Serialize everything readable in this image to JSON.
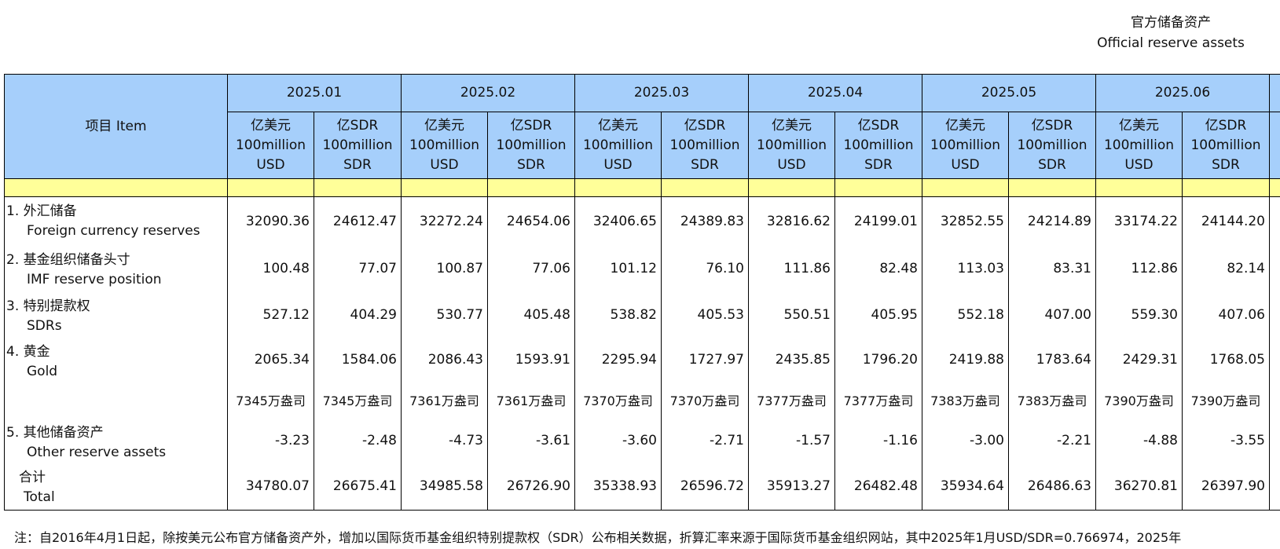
{
  "header": {
    "title_cn": "官方储备资产",
    "title_en": "Official reserve assets"
  },
  "table": {
    "item_header": "项目  Item",
    "months": [
      "2025.01",
      "2025.02",
      "2025.03",
      "2025.04",
      "2025.05",
      "2025.06"
    ],
    "unit_usd": [
      "亿美元",
      "100million",
      "USD"
    ],
    "unit_sdr": [
      "亿SDR",
      "100million",
      "SDR"
    ],
    "rows": [
      {
        "label_cn": "1. 外汇储备",
        "label_en": "Foreign currency reserves",
        "values": [
          "32090.36",
          "24612.47",
          "32272.24",
          "24654.06",
          "32406.65",
          "24389.83",
          "32816.62",
          "24199.01",
          "32852.55",
          "24214.89",
          "33174.22",
          "24144.20"
        ]
      },
      {
        "label_cn": "2. 基金组织储备头寸",
        "label_en": "IMF reserve position",
        "values": [
          "100.48",
          "77.07",
          "100.87",
          "77.06",
          "101.12",
          "76.10",
          "111.86",
          "82.48",
          "113.03",
          "83.31",
          "112.86",
          "82.14"
        ]
      },
      {
        "label_cn": "3. 特别提款权",
        "label_en": "SDRs",
        "values": [
          "527.12",
          "404.29",
          "530.77",
          "405.48",
          "538.82",
          "405.53",
          "550.51",
          "405.95",
          "552.18",
          "407.00",
          "559.30",
          "407.06"
        ]
      },
      {
        "label_cn": "4. 黄金",
        "label_en": "Gold",
        "values": [
          "2065.34",
          "1584.06",
          "2086.43",
          "1593.91",
          "2295.94",
          "1727.97",
          "2435.85",
          "1796.20",
          "2419.88",
          "1783.64",
          "2429.31",
          "1768.05"
        ]
      },
      {
        "values": [
          "7345万盎司",
          "7345万盎司",
          "7361万盎司",
          "7361万盎司",
          "7370万盎司",
          "7370万盎司",
          "7377万盎司",
          "7377万盎司",
          "7383万盎司",
          "7383万盎司",
          "7390万盎司",
          "7390万盎司"
        ]
      },
      {
        "label_cn": "5. 其他储备资产",
        "label_en": "Other reserve assets",
        "values": [
          "-3.23",
          "-2.48",
          "-4.73",
          "-3.61",
          "-3.60",
          "-2.71",
          "-1.57",
          "-1.16",
          "-3.00",
          "-2.21",
          "-4.88",
          "-3.55"
        ]
      },
      {
        "label_cn": "合计",
        "label_en": "Total",
        "values": [
          "34780.07",
          "26675.41",
          "34985.58",
          "26726.90",
          "35338.93",
          "26596.72",
          "35913.27",
          "26482.48",
          "35934.64",
          "26486.63",
          "36270.81",
          "26397.90"
        ]
      }
    ]
  },
  "note": "注：自2016年4月1日起，除按美元公布官方储备资产外，增加以国际货币基金组织特别提款权（SDR）公布相关数据，折算汇率来源于国际货币基金组织网站，其中2025年1月USD/SDR=0.766974，2025年"
}
